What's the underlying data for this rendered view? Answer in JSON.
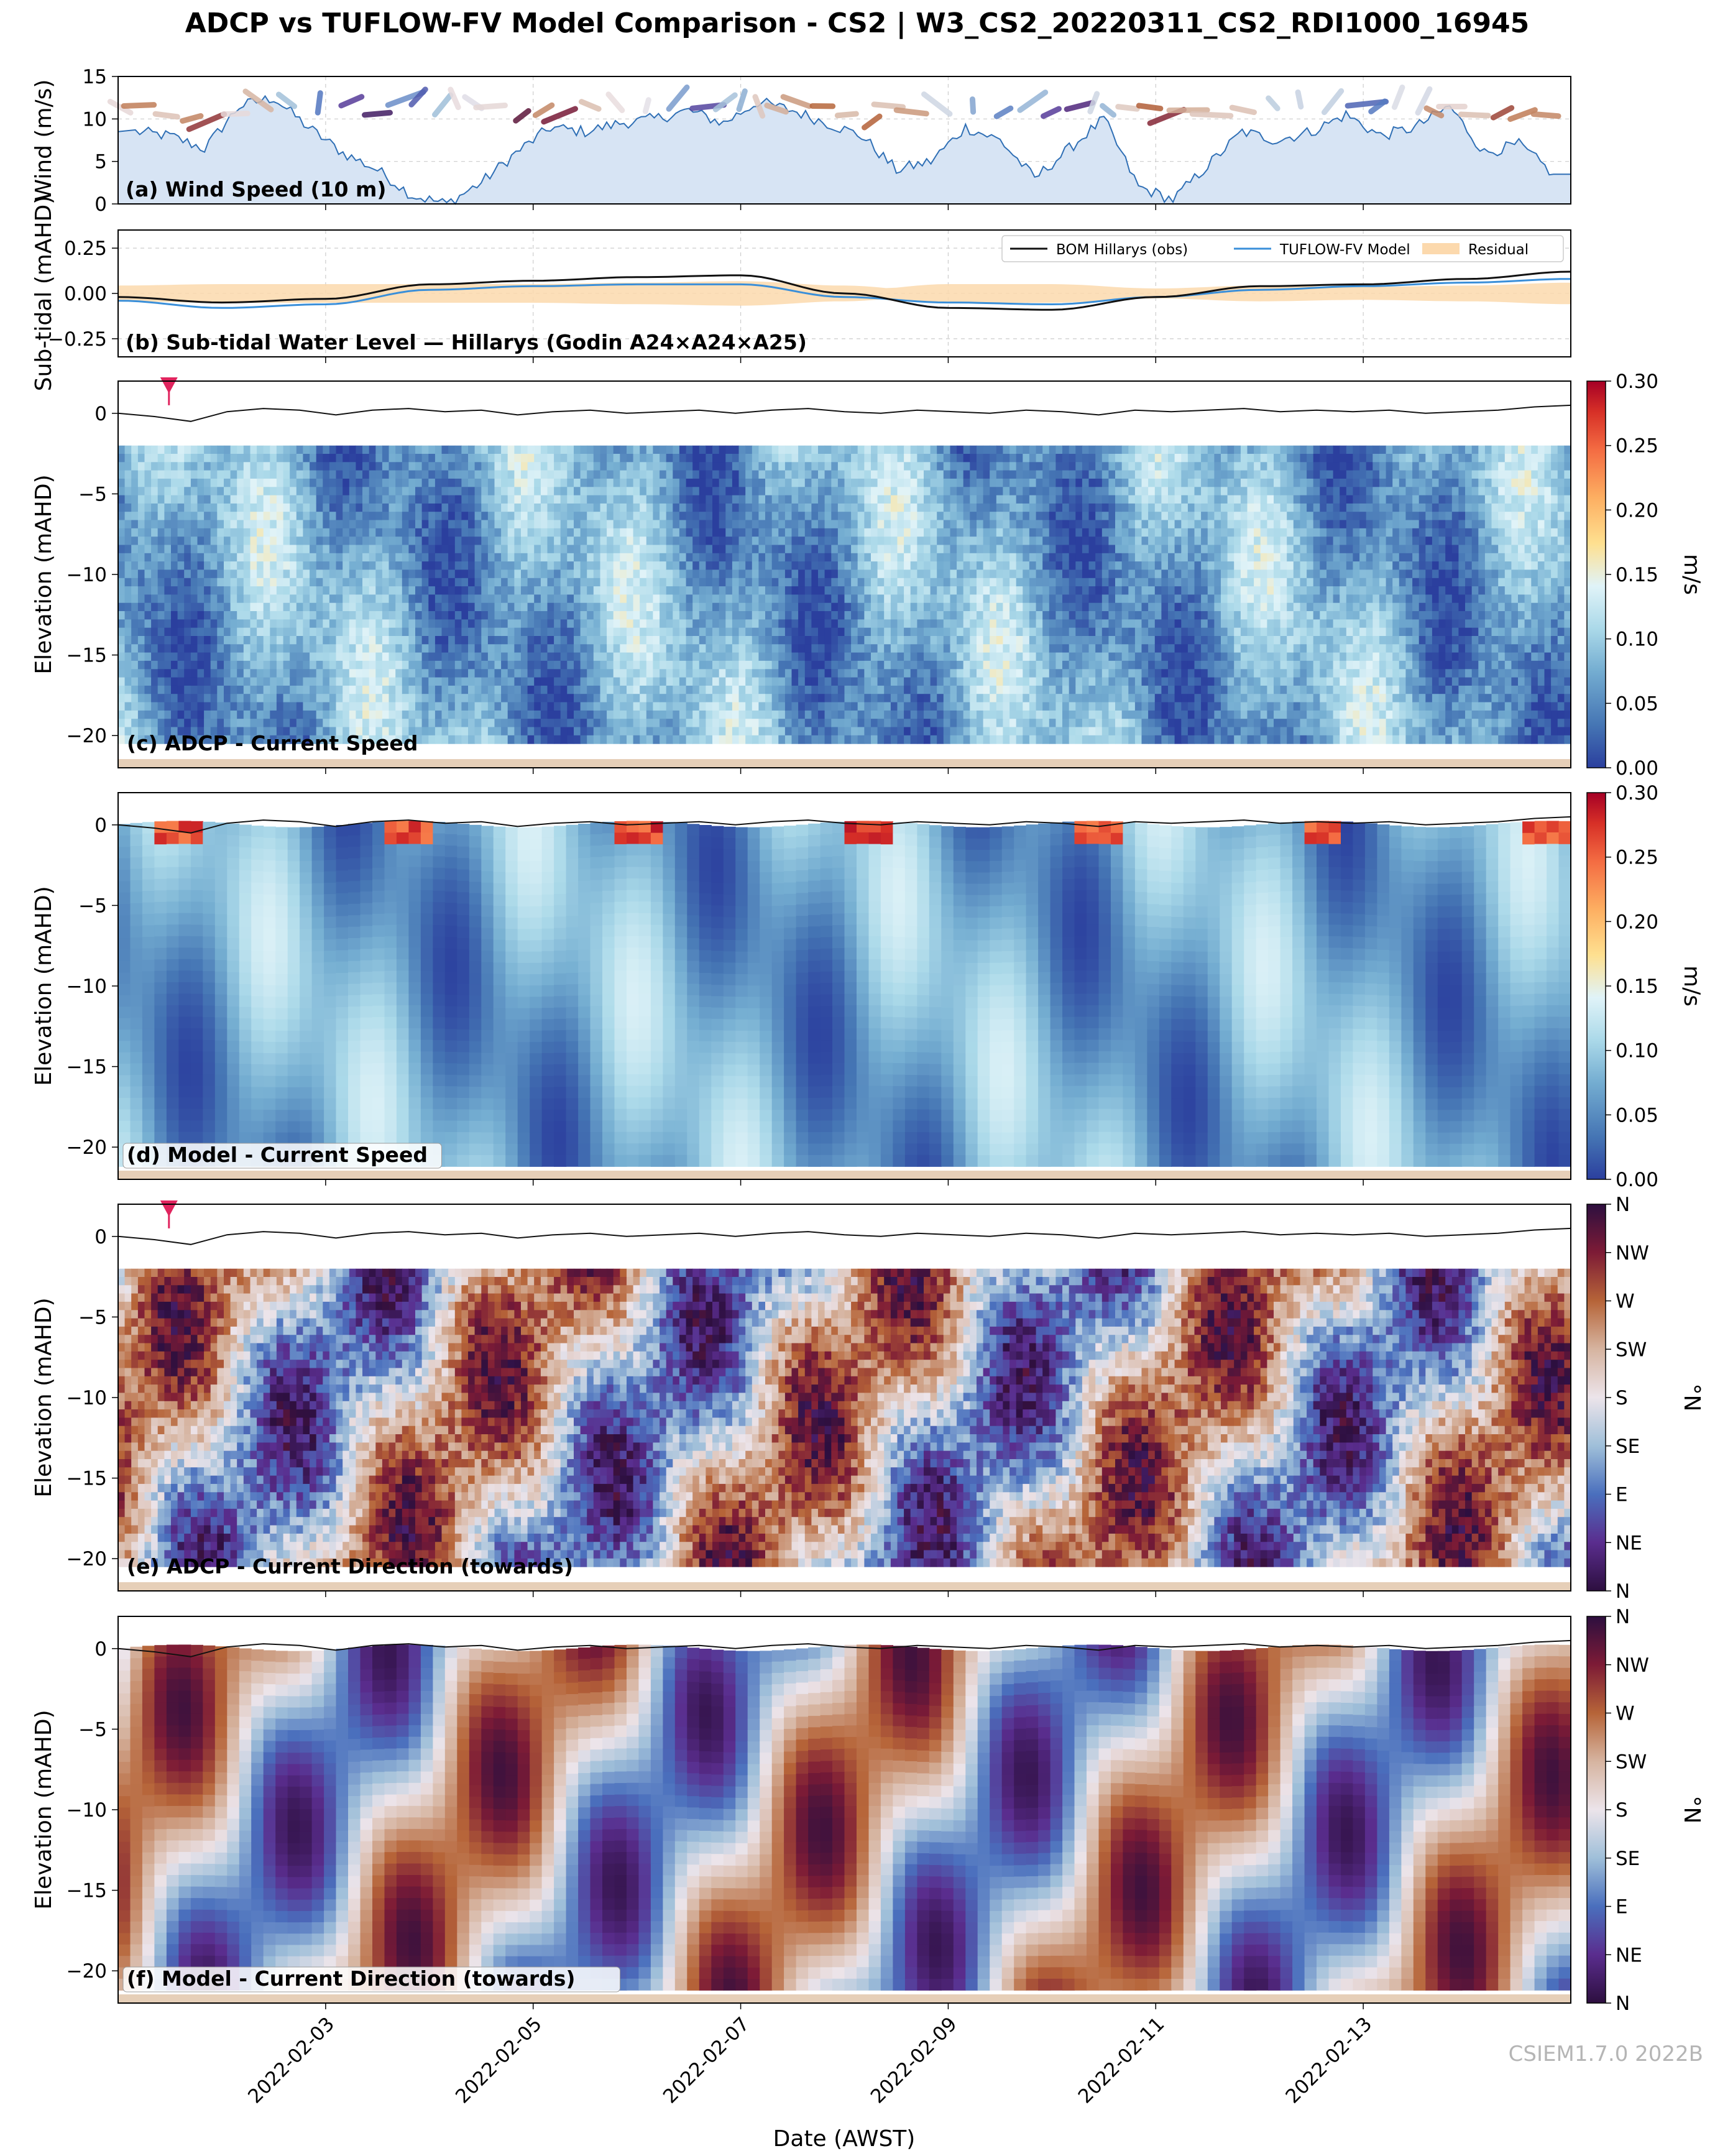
{
  "title": "ADCP vs TUFLOW-FV Model Comparison - CS2 | W3_CS2_20220311_CS2_RDI1000_16945",
  "footer": "CSIEM1.7.0 2022B",
  "xlabel": "Date (AWST)",
  "colors": {
    "wind_line": "#2f6fb5",
    "wind_fill": "#d7e4f4",
    "obs_line": "#111111",
    "model_line": "#3a8fd9",
    "residual_fill": "#fcd9ad",
    "marker": "#e0245e",
    "seabed": "#e6cfb8",
    "speed_cmap": [
      "#2b3f9e",
      "#4575b4",
      "#74add1",
      "#abd9e9",
      "#e0f3f8",
      "#fee090",
      "#fdae61",
      "#f46d43",
      "#d73027",
      "#a50026"
    ],
    "direction_cmap": [
      "#2d0f3f",
      "#5a2d8e",
      "#4a6fbd",
      "#9fbfd9",
      "#ece4ea",
      "#d6b4a0",
      "#b66438",
      "#7d1b36",
      "#2d0f3f"
    ]
  },
  "chart_data": [
    {
      "id": "a",
      "type": "area",
      "label": "(a) Wind Speed (10 m)",
      "ylabel": "Wind (m/s)",
      "ylim": [
        0,
        15
      ],
      "yticks": [
        "0",
        "5",
        "10",
        "15"
      ],
      "grid": true,
      "x": [
        "2022-02-01 04:00",
        "2022-02-01 12:00",
        "2022-02-01 20:00",
        "2022-02-02 04:00",
        "2022-02-02 12:00",
        "2022-02-02 20:00",
        "2022-02-03 04:00",
        "2022-02-03 12:00",
        "2022-02-03 20:00",
        "2022-02-04 04:00",
        "2022-02-04 12:00",
        "2022-02-04 20:00",
        "2022-02-05 04:00",
        "2022-02-05 12:00",
        "2022-02-05 20:00",
        "2022-02-06 04:00",
        "2022-02-06 12:00",
        "2022-02-06 20:00",
        "2022-02-07 04:00",
        "2022-02-07 12:00",
        "2022-02-07 20:00",
        "2022-02-08 04:00",
        "2022-02-08 12:00",
        "2022-02-08 20:00",
        "2022-02-09 04:00",
        "2022-02-09 12:00",
        "2022-02-09 20:00",
        "2022-02-10 04:00",
        "2022-02-10 12:00",
        "2022-02-10 20:00",
        "2022-02-11 04:00",
        "2022-02-11 12:00",
        "2022-02-11 20:00",
        "2022-02-12 04:00",
        "2022-02-12 12:00",
        "2022-02-12 20:00",
        "2022-02-13 04:00",
        "2022-02-13 12:00",
        "2022-02-13 20:00",
        "2022-02-14 04:00",
        "2022-02-14 12:00",
        "2022-02-14 20:00"
      ],
      "values": [
        8.5,
        8.0,
        6.5,
        11.5,
        12.5,
        9.0,
        6.0,
        4.0,
        1.0,
        0.0,
        2.5,
        6.0,
        9.0,
        8.5,
        9.5,
        10.0,
        11.0,
        9.5,
        12.0,
        11.0,
        9.5,
        8.0,
        4.0,
        5.0,
        9.0,
        7.5,
        3.0,
        6.5,
        10.0,
        2.0,
        0.5,
        4.5,
        8.5,
        7.5,
        8.5,
        10.5,
        8.0,
        9.0,
        11.5,
        6.0,
        7.0,
        3.5
      ],
      "arrows": "wind direction sticks along the top of the panel, colored with the direction colormap"
    },
    {
      "id": "b",
      "type": "line",
      "label": "(b) Sub-tidal Water Level — Hillarys (Godin A24×A24×A25)",
      "ylabel": "Sub-tidal (mAHD)",
      "ylim": [
        -0.35,
        0.35
      ],
      "yticks": [
        "−0.25",
        "0.00",
        "0.25"
      ],
      "grid": true,
      "legend": [
        "BOM Hillarys (obs)",
        "TUFLOW-FV Model",
        "Residual"
      ],
      "legend_position": "top-right",
      "x": [
        "2022-02-01",
        "2022-02-02",
        "2022-02-03",
        "2022-02-04",
        "2022-02-05",
        "2022-02-06",
        "2022-02-07",
        "2022-02-08",
        "2022-02-09",
        "2022-02-10",
        "2022-02-11",
        "2022-02-12",
        "2022-02-13",
        "2022-02-14",
        "2022-02-15"
      ],
      "obs": [
        -0.02,
        -0.05,
        -0.03,
        0.05,
        0.07,
        0.09,
        0.1,
        0.0,
        -0.08,
        -0.09,
        -0.02,
        0.04,
        0.05,
        0.08,
        0.12
      ],
      "model": [
        -0.04,
        -0.08,
        -0.06,
        0.02,
        0.04,
        0.05,
        0.05,
        -0.02,
        -0.05,
        -0.06,
        -0.02,
        0.02,
        0.04,
        0.06,
        0.08
      ]
    },
    {
      "id": "c",
      "type": "heatmap",
      "label": "(c) ADCP - Current Speed",
      "ylabel": "Elevation (mAHD)",
      "ylim": [
        -22,
        2
      ],
      "yticks": [
        "−20",
        "−15",
        "−10",
        "−5",
        "0"
      ],
      "colorbar_label": "m/s",
      "colorbar_ticks": [
        "0.00",
        "0.05",
        "0.10",
        "0.15",
        "0.20",
        "0.25",
        "0.30"
      ],
      "vmin": 0.0,
      "vmax": 0.3,
      "data_top": -2,
      "data_bottom": -20.5
    },
    {
      "id": "d",
      "type": "heatmap",
      "label": "(d) Model - Current Speed",
      "ylabel": "Elevation (mAHD)",
      "ylim": [
        -22,
        2
      ],
      "yticks": [
        "−20",
        "−15",
        "−10",
        "−5",
        "0"
      ],
      "colorbar_label": "m/s",
      "colorbar_ticks": [
        "0.00",
        "0.05",
        "0.10",
        "0.15",
        "0.20",
        "0.25",
        "0.30"
      ],
      "vmin": 0.0,
      "vmax": 0.3,
      "data_top": 0,
      "data_bottom": -21.2
    },
    {
      "id": "e",
      "type": "heatmap",
      "label": "(e) ADCP - Current Direction (towards)",
      "ylabel": "Elevation (mAHD)",
      "ylim": [
        -22,
        2
      ],
      "yticks": [
        "−20",
        "−15",
        "−10",
        "−5",
        "0"
      ],
      "colorbar_label": "°N",
      "colorbar_ticks": [
        "N",
        "NE",
        "E",
        "SE",
        "S",
        "SW",
        "W",
        "NW",
        "N"
      ],
      "data_top": -2,
      "data_bottom": -20.5
    },
    {
      "id": "f",
      "type": "heatmap",
      "label": "(f) Model - Current Direction (towards)",
      "ylabel": "Elevation (mAHD)",
      "ylim": [
        -22,
        2
      ],
      "yticks": [
        "−20",
        "−15",
        "−10",
        "−5",
        "0"
      ],
      "colorbar_label": "°N",
      "colorbar_ticks": [
        "N",
        "NE",
        "E",
        "SE",
        "S",
        "SW",
        "W",
        "NW",
        "N"
      ],
      "data_top": 0,
      "data_bottom": -21.2
    }
  ],
  "x_axis": {
    "range": [
      "2022-02-01 00:00",
      "2022-02-15 00:00"
    ],
    "ticks": [
      "2022-02-03",
      "2022-02-05",
      "2022-02-07",
      "2022-02-09",
      "2022-02-11",
      "2022-02-13"
    ]
  },
  "surface_elevation": [
    0,
    -0.2,
    -0.5,
    0.1,
    0.3,
    0.2,
    -0.1,
    0.2,
    0.3,
    0.1,
    0.2,
    -0.1,
    0.1,
    0.2,
    0.0,
    0.1,
    0.2,
    0.0,
    0.2,
    0.3,
    0.1,
    0.0,
    0.2,
    0.1,
    0.0,
    0.2,
    0.1,
    -0.1,
    0.2,
    0.1,
    0.2,
    0.3,
    0.1,
    0.2,
    0.1,
    0.2,
    0.0,
    0.1,
    0.2,
    0.4,
    0.5
  ]
}
